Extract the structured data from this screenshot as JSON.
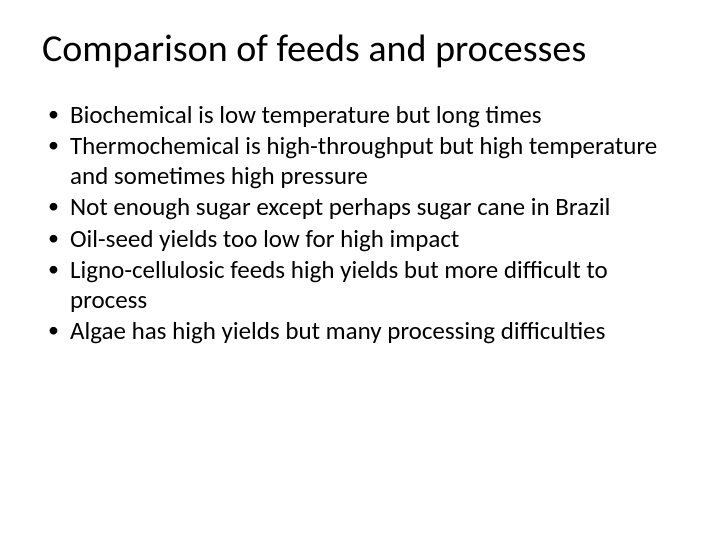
{
  "slide": {
    "background_color": "#ffffff",
    "text_color": "#000000",
    "font_family": "Calibri",
    "title": {
      "text": "Comparison of feeds and processes",
      "fontsize": 38,
      "weight": 400
    },
    "bullets": {
      "fontsize": 25,
      "marker": "•",
      "items": [
        "Biochemical is low temperature but long times",
        "Thermochemical is high-throughput but high temperature and sometimes high pressure",
        "Not enough sugar except perhaps sugar cane in Brazil",
        "Oil-seed yields too low for high impact",
        "Ligno-cellulosic feeds high yields but more difficult to process",
        "Algae has high yields but many processing difficulties"
      ]
    }
  }
}
